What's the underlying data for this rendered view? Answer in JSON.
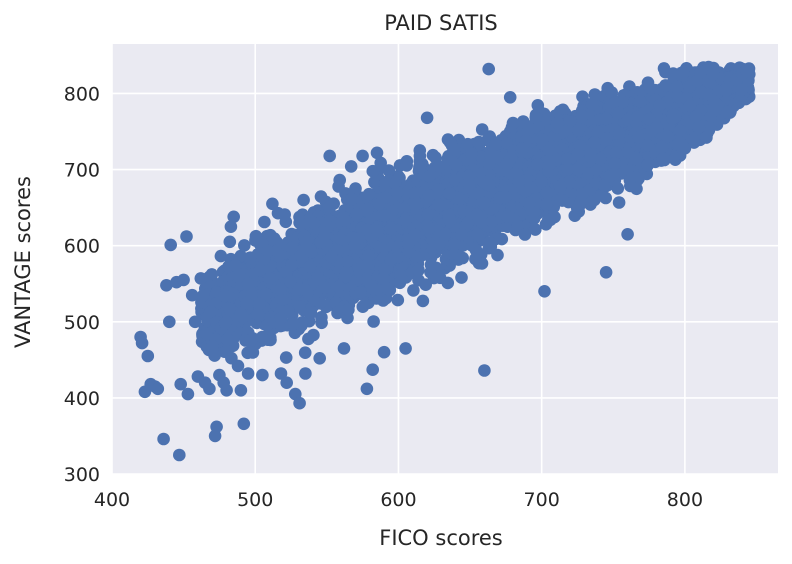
{
  "chart_data": {
    "type": "scatter",
    "title": "PAID SATIS",
    "xlabel": "FICO scores",
    "ylabel": "VANTAGE scores",
    "xlim": [
      400,
      865
    ],
    "ylim": [
      300,
      865
    ],
    "xticks": [
      400,
      500,
      600,
      700,
      800
    ],
    "yticks": [
      300,
      400,
      500,
      600,
      700,
      800
    ],
    "grid": true,
    "colors": {
      "plot_bg": "#eaeaf2",
      "grid": "#ffffff",
      "marker": "#4c72b0"
    },
    "series": [
      {
        "points": [
          [
            420,
            480
          ],
          [
            421,
            472
          ],
          [
            423,
            408
          ],
          [
            425,
            455
          ],
          [
            427,
            418
          ],
          [
            430,
            415
          ],
          [
            432,
            412
          ],
          [
            436,
            346
          ],
          [
            438,
            548
          ],
          [
            440,
            500
          ],
          [
            441,
            601
          ],
          [
            445,
            552
          ],
          [
            447,
            325
          ],
          [
            448,
            418
          ],
          [
            450,
            555
          ],
          [
            452,
            612
          ],
          [
            453,
            405
          ],
          [
            456,
            535
          ],
          [
            458,
            500
          ],
          [
            460,
            428
          ],
          [
            462,
            557
          ],
          [
            465,
            420
          ],
          [
            468,
            412
          ],
          [
            470,
            468
          ],
          [
            472,
            350
          ],
          [
            473,
            362
          ],
          [
            475,
            430
          ],
          [
            478,
            420
          ],
          [
            480,
            410
          ],
          [
            483,
            625
          ],
          [
            485,
            638
          ],
          [
            488,
            442
          ],
          [
            490,
            410
          ],
          [
            492,
            366
          ],
          [
            495,
            432
          ],
          [
            505,
            430
          ],
          [
            512,
            655
          ],
          [
            518,
            432
          ],
          [
            522,
            420
          ],
          [
            528,
            405
          ],
          [
            531,
            393
          ],
          [
            535,
            432
          ],
          [
            545,
            452
          ],
          [
            552,
            718
          ],
          [
            562,
            465
          ],
          [
            575,
            718
          ],
          [
            578,
            412
          ],
          [
            582,
            437
          ],
          [
            585,
            722
          ],
          [
            590,
            460
          ],
          [
            605,
            465
          ],
          [
            615,
            718
          ],
          [
            620,
            768
          ],
          [
            655,
            615
          ],
          [
            660,
            436
          ],
          [
            663,
            832
          ],
          [
            678,
            795
          ],
          [
            702,
            540
          ],
          [
            745,
            565
          ],
          [
            760,
            615
          ],
          [
            800,
            728
          ],
          [
            815,
            742
          ],
          [
            836,
            818
          ],
          [
            840,
            826
          ],
          [
            843,
            830
          ]
        ]
      }
    ],
    "density_band": {
      "x": [
        462,
        480,
        500,
        520,
        540,
        560,
        580,
        600,
        620,
        640,
        660,
        680,
        700,
        720,
        740,
        760,
        780,
        800,
        820,
        845
      ],
      "y_center": [
        505,
        520,
        538,
        555,
        571,
        587,
        603,
        620,
        637,
        653,
        668,
        685,
        700,
        715,
        730,
        745,
        760,
        775,
        795,
        815
      ],
      "half_width": [
        40,
        52,
        62,
        70,
        74,
        76,
        76,
        75,
        72,
        70,
        67,
        64,
        62,
        60,
        57,
        54,
        50,
        46,
        38,
        16
      ]
    },
    "seed": 20240607
  }
}
